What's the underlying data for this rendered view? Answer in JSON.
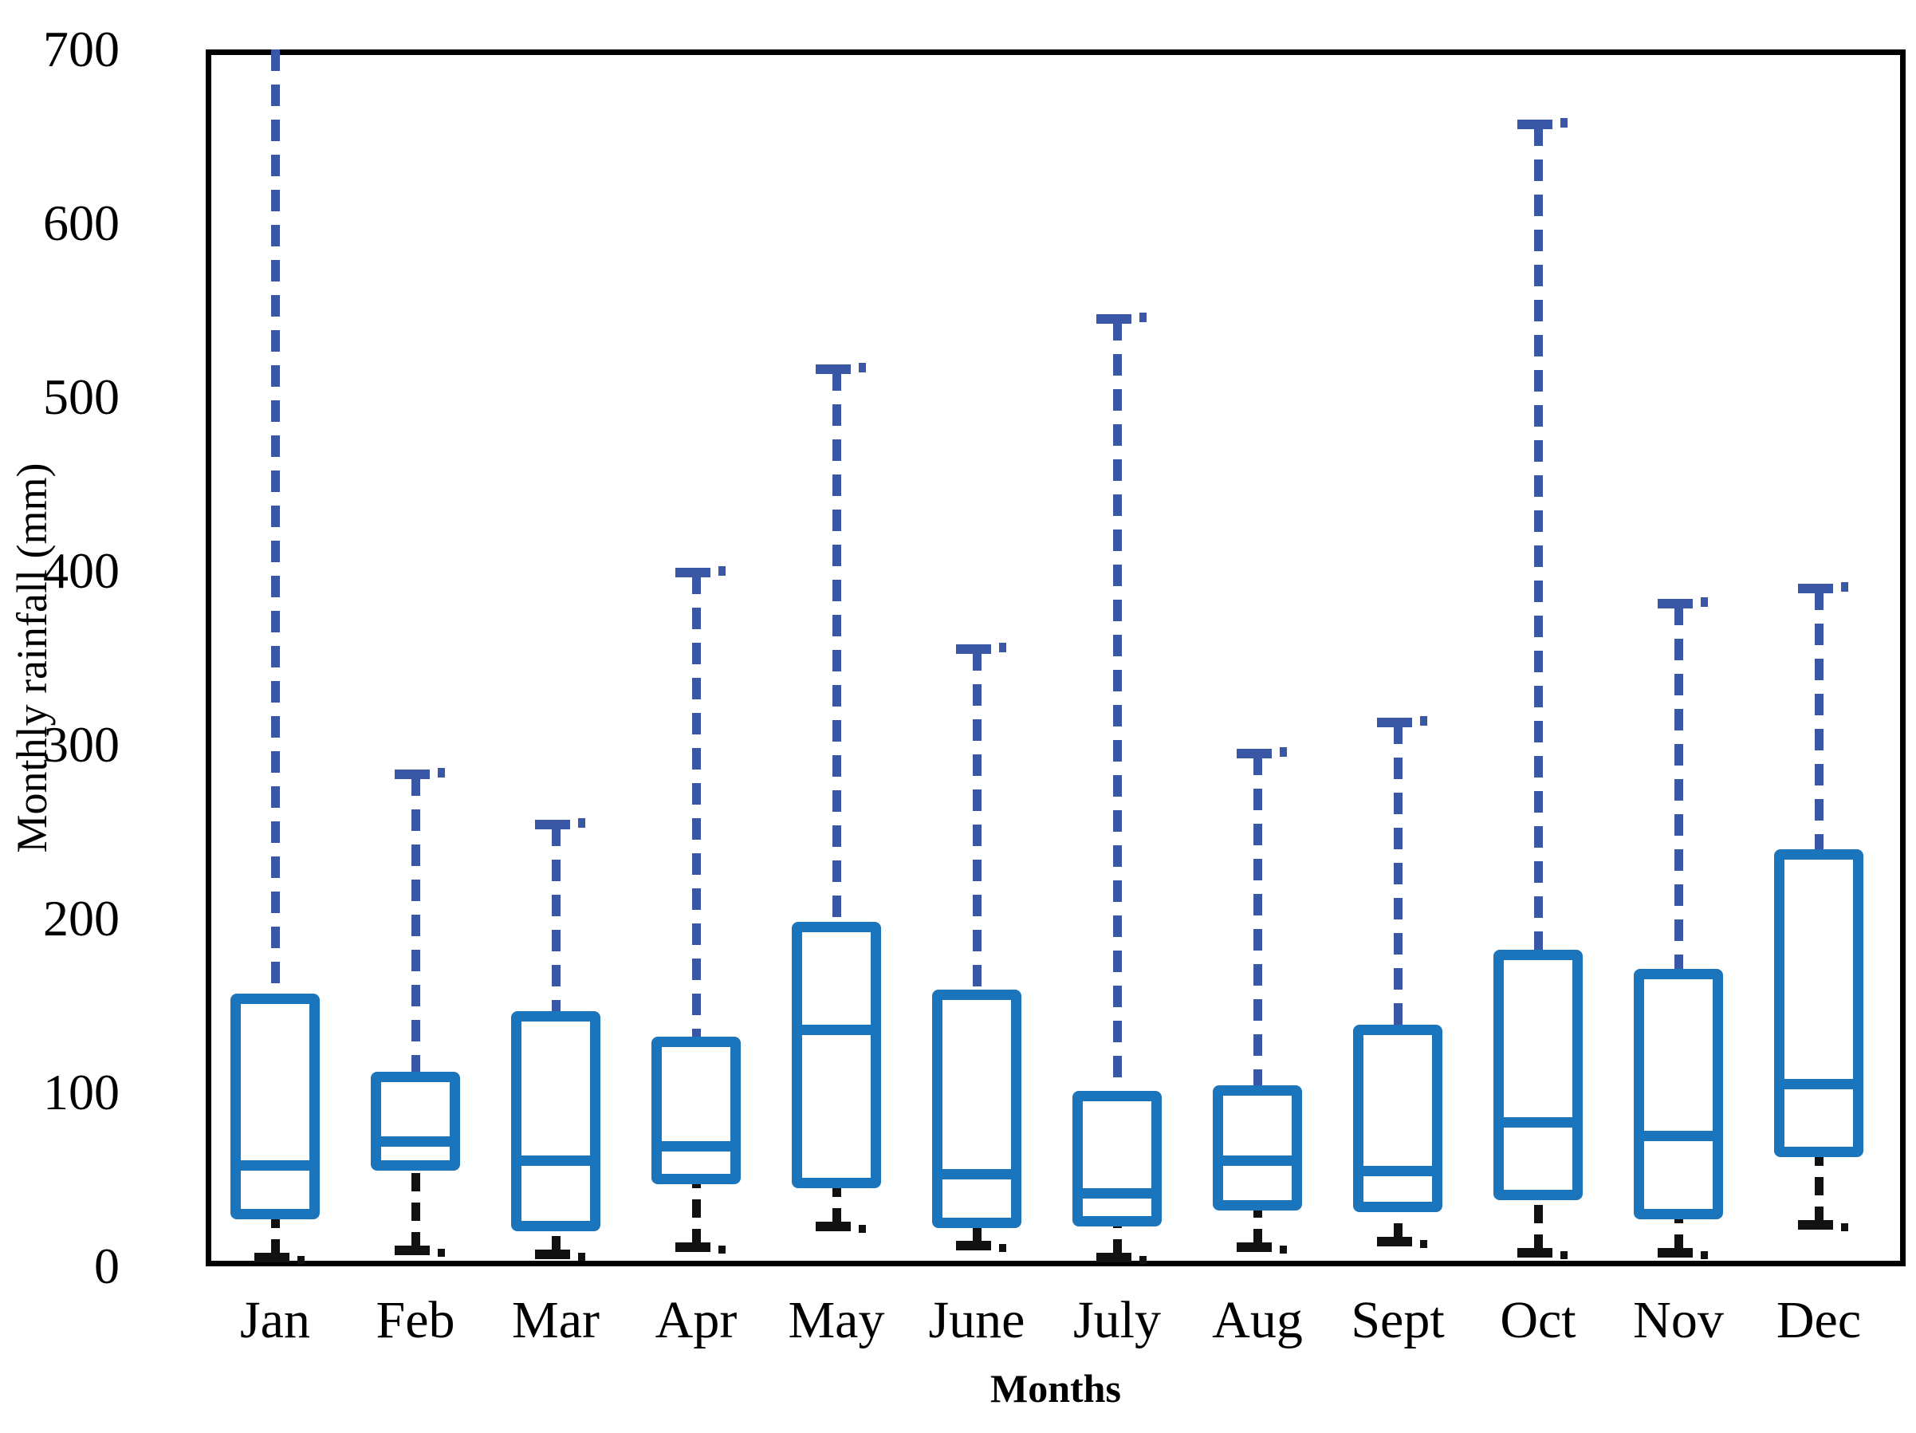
{
  "figure": {
    "y_axis_title": "Monthly rainfall (mm)",
    "x_axis_title": "Months",
    "y_tick_labels": [
      "0",
      "100",
      "200",
      "300",
      "400",
      "500",
      "600",
      "700"
    ]
  },
  "colors": {
    "box_border": "#1b75bc",
    "median": "#1b75bc",
    "upper_whisker": "#3a57a5",
    "lower_whisker": "#111111",
    "frame": "#000000"
  },
  "chart_data": {
    "type": "boxplot",
    "title": "",
    "xlabel": "Months",
    "ylabel": "Monthly rainfall (mm)",
    "ylim": [
      0,
      700
    ],
    "y_ticks": [
      0,
      100,
      200,
      300,
      400,
      500,
      600,
      700
    ],
    "grid": false,
    "categories": [
      "Jan",
      "Feb",
      "Mar",
      "Apr",
      "May",
      "June",
      "July",
      "Aug",
      "Sept",
      "Oct",
      "Nov",
      "Dec"
    ],
    "boxes": [
      {
        "month": "Jan",
        "whisker_low": 5,
        "q1": 30,
        "median": 58,
        "q3": 154,
        "whisker_high": 700,
        "high_cap_hidden": true
      },
      {
        "month": "Feb",
        "whisker_low": 9,
        "q1": 58,
        "median": 72,
        "q3": 109,
        "whisker_high": 283
      },
      {
        "month": "Mar",
        "whisker_low": 7,
        "q1": 23,
        "median": 61,
        "q3": 144,
        "whisker_high": 254
      },
      {
        "month": "Apr",
        "whisker_low": 11,
        "q1": 50,
        "median": 69,
        "q3": 129,
        "whisker_high": 399
      },
      {
        "month": "May",
        "whisker_low": 23,
        "q1": 48,
        "median": 136,
        "q3": 195,
        "whisker_high": 516
      },
      {
        "month": "June",
        "whisker_low": 12,
        "q1": 25,
        "median": 53,
        "q3": 156,
        "whisker_high": 355
      },
      {
        "month": "July",
        "whisker_low": 5,
        "q1": 26,
        "median": 42,
        "q3": 98,
        "whisker_high": 545
      },
      {
        "month": "Aug",
        "whisker_low": 11,
        "q1": 35,
        "median": 61,
        "q3": 101,
        "whisker_high": 295
      },
      {
        "month": "Sept",
        "whisker_low": 14,
        "q1": 34,
        "median": 55,
        "q3": 136,
        "whisker_high": 313
      },
      {
        "month": "Oct",
        "whisker_low": 8,
        "q1": 41,
        "median": 83,
        "q3": 179,
        "whisker_high": 657
      },
      {
        "month": "Nov",
        "whisker_low": 8,
        "q1": 30,
        "median": 75,
        "q3": 168,
        "whisker_high": 381
      },
      {
        "month": "Dec",
        "whisker_low": 24,
        "q1": 66,
        "median": 105,
        "q3": 237,
        "whisker_high": 390
      }
    ]
  }
}
